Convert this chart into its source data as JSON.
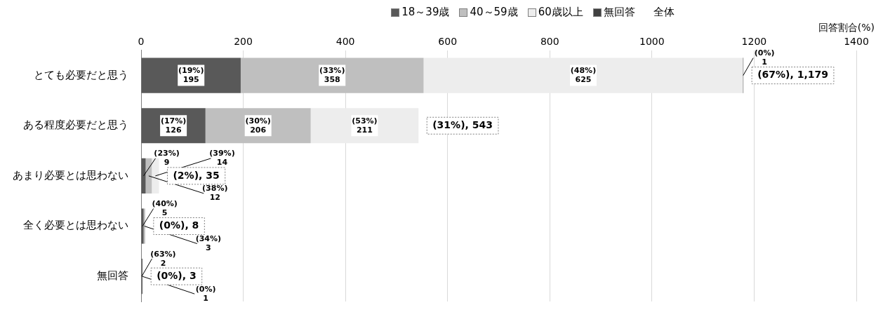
{
  "chart_data": {
    "type": "bar",
    "orientation": "horizontal",
    "stacked": true,
    "xlabel": "回答割合(%)",
    "legend": "top",
    "grid": "x",
    "categories": [
      "とても必要だと思う",
      "ある程度必要だと思う",
      "あまり必要とは思わない",
      "全く必要とは思わない",
      "無回答"
    ],
    "xlim": [
      0,
      1400
    ],
    "xticks": [
      0,
      200,
      400,
      600,
      800,
      1000,
      1200,
      1400
    ],
    "series": [
      {
        "name": "18～39歳",
        "color": "#595959",
        "values": [
          195,
          126,
          9,
          5,
          2
        ],
        "value_labels": [
          "(19%)\n195",
          "(17%)\n126",
          "(23%)\n9",
          "(40%)\n5",
          "(63%)\n2"
        ]
      },
      {
        "name": "40～59歳",
        "color": "#bfbfbf",
        "values": [
          358,
          206,
          12,
          3,
          0
        ],
        "value_labels": [
          "(33%)\n358",
          "(30%)\n206",
          "(38%)\n12",
          "(34%)\n3",
          null
        ]
      },
      {
        "name": "60歳以上",
        "color": "#ededed",
        "values": [
          625,
          211,
          14,
          0,
          0
        ],
        "value_labels": [
          "(48%)\n625",
          "(53%)\n211",
          "(39%)\n14",
          null,
          null
        ]
      },
      {
        "name": "無回答",
        "color": "#404040",
        "values": [
          1,
          0,
          0,
          0,
          1
        ],
        "value_labels": [
          "(0%)\n1",
          null,
          null,
          null,
          "(0%)\n1"
        ]
      }
    ],
    "totals": [
      "(67%), 1,179",
      "(31%), 543",
      "(2%), 35",
      "(0%), 8",
      "(0%), 3"
    ],
    "annotations": [
      "全体"
    ]
  }
}
